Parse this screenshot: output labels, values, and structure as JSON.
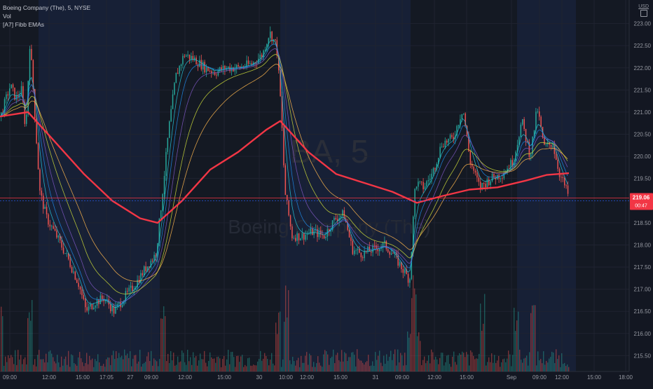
{
  "legend": {
    "symbol": "Boeing Company (The), 5, NYSE",
    "vol": "Vol",
    "indicator": "[A7] Fibb EMAs"
  },
  "currency": "USD",
  "watermark": {
    "ticker": "BA, 5",
    "name": "Boeing Company (The)"
  },
  "price_tag": {
    "price": "219.06",
    "countdown": "00:47"
  },
  "colors": {
    "background": "#131722",
    "grid": "#1f2330",
    "up": "#26a69a",
    "down": "#ef5350",
    "ema200": "#f23645",
    "ema_lines": [
      "#26c6da",
      "#1e88e5",
      "#7e57c2",
      "#cddc39",
      "#ffb74d"
    ],
    "highlight_band": "#172036",
    "price_line": "#f23645",
    "price_line_blue": "#2962ff"
  },
  "chart_data": {
    "type": "candlestick",
    "symbol": "Boeing Company (The)",
    "interval": "5",
    "exchange": "NYSE",
    "y_axis_ticks": [
      "223.00",
      "222.50",
      "222.00",
      "221.50",
      "221.00",
      "220.50",
      "220.00",
      "219.50",
      "218.50",
      "218.00",
      "217.50",
      "217.00",
      "216.50",
      "216.00",
      "215.50"
    ],
    "x_axis_ticks": [
      "09:00",
      "12:00",
      "15:00",
      "17:05",
      "27",
      "09:00",
      "12:00",
      "15:00",
      "30",
      "10:00",
      "12:00",
      "15:00",
      "31",
      "09:00",
      "12:00",
      "15:00",
      "Sep",
      "09:00",
      "12:00",
      "15:00",
      "18:00"
    ],
    "ylim": [
      215.3,
      223.3
    ],
    "last_price": 219.06,
    "price_path": [
      {
        "x": 0,
        "y": 220.9
      },
      {
        "x": 6,
        "y": 221.2
      },
      {
        "x": 14,
        "y": 221.6
      },
      {
        "x": 22,
        "y": 221.3
      },
      {
        "x": 30,
        "y": 221.5
      },
      {
        "x": 36,
        "y": 220.6
      },
      {
        "x": 42,
        "y": 222.6
      },
      {
        "x": 48,
        "y": 221.2
      },
      {
        "x": 56,
        "y": 219.2
      },
      {
        "x": 66,
        "y": 218.6
      },
      {
        "x": 80,
        "y": 218.2
      },
      {
        "x": 96,
        "y": 217.7
      },
      {
        "x": 112,
        "y": 217.1
      },
      {
        "x": 122,
        "y": 216.5
      },
      {
        "x": 134,
        "y": 216.7
      },
      {
        "x": 148,
        "y": 216.8
      },
      {
        "x": 162,
        "y": 216.5
      },
      {
        "x": 176,
        "y": 216.8
      },
      {
        "x": 192,
        "y": 217.1
      },
      {
        "x": 208,
        "y": 217.5
      },
      {
        "x": 222,
        "y": 217.8
      },
      {
        "x": 230,
        "y": 219.0
      },
      {
        "x": 240,
        "y": 220.6
      },
      {
        "x": 250,
        "y": 221.8
      },
      {
        "x": 262,
        "y": 222.3
      },
      {
        "x": 276,
        "y": 222.2
      },
      {
        "x": 292,
        "y": 222.0
      },
      {
        "x": 306,
        "y": 221.9
      },
      {
        "x": 322,
        "y": 222.0
      },
      {
        "x": 340,
        "y": 222.0
      },
      {
        "x": 360,
        "y": 222.1
      },
      {
        "x": 374,
        "y": 222.3
      },
      {
        "x": 384,
        "y": 222.8
      },
      {
        "x": 394,
        "y": 222.5
      },
      {
        "x": 400,
        "y": 221.2
      },
      {
        "x": 406,
        "y": 219.2
      },
      {
        "x": 416,
        "y": 218.2
      },
      {
        "x": 430,
        "y": 218.2
      },
      {
        "x": 446,
        "y": 218.3
      },
      {
        "x": 462,
        "y": 218.2
      },
      {
        "x": 478,
        "y": 218.6
      },
      {
        "x": 490,
        "y": 218.7
      },
      {
        "x": 502,
        "y": 217.9
      },
      {
        "x": 516,
        "y": 217.8
      },
      {
        "x": 532,
        "y": 217.9
      },
      {
        "x": 548,
        "y": 218.0
      },
      {
        "x": 560,
        "y": 217.8
      },
      {
        "x": 572,
        "y": 217.5
      },
      {
        "x": 584,
        "y": 217.2
      },
      {
        "x": 592,
        "y": 219.4
      },
      {
        "x": 604,
        "y": 219.3
      },
      {
        "x": 616,
        "y": 219.6
      },
      {
        "x": 630,
        "y": 220.3
      },
      {
        "x": 646,
        "y": 220.4
      },
      {
        "x": 660,
        "y": 221.1
      },
      {
        "x": 670,
        "y": 219.9
      },
      {
        "x": 684,
        "y": 219.3
      },
      {
        "x": 700,
        "y": 219.5
      },
      {
        "x": 716,
        "y": 219.6
      },
      {
        "x": 732,
        "y": 219.9
      },
      {
        "x": 744,
        "y": 220.8
      },
      {
        "x": 756,
        "y": 220.0
      },
      {
        "x": 766,
        "y": 221.1
      },
      {
        "x": 776,
        "y": 220.2
      },
      {
        "x": 788,
        "y": 220.3
      },
      {
        "x": 798,
        "y": 219.6
      },
      {
        "x": 806,
        "y": 219.3
      },
      {
        "x": 812,
        "y": 219.06
      }
    ],
    "ema200_path": [
      {
        "x": 0,
        "y": 220.9
      },
      {
        "x": 40,
        "y": 221.0
      },
      {
        "x": 80,
        "y": 220.3
      },
      {
        "x": 120,
        "y": 219.6
      },
      {
        "x": 160,
        "y": 219.0
      },
      {
        "x": 200,
        "y": 218.6
      },
      {
        "x": 225,
        "y": 218.5
      },
      {
        "x": 260,
        "y": 219.0
      },
      {
        "x": 300,
        "y": 219.7
      },
      {
        "x": 340,
        "y": 220.1
      },
      {
        "x": 380,
        "y": 220.6
      },
      {
        "x": 400,
        "y": 220.8
      },
      {
        "x": 440,
        "y": 220.1
      },
      {
        "x": 480,
        "y": 219.6
      },
      {
        "x": 520,
        "y": 219.4
      },
      {
        "x": 560,
        "y": 219.2
      },
      {
        "x": 595,
        "y": 218.95
      },
      {
        "x": 630,
        "y": 219.1
      },
      {
        "x": 670,
        "y": 219.25
      },
      {
        "x": 710,
        "y": 219.3
      },
      {
        "x": 750,
        "y": 219.45
      },
      {
        "x": 780,
        "y": 219.58
      },
      {
        "x": 812,
        "y": 219.62
      }
    ]
  }
}
